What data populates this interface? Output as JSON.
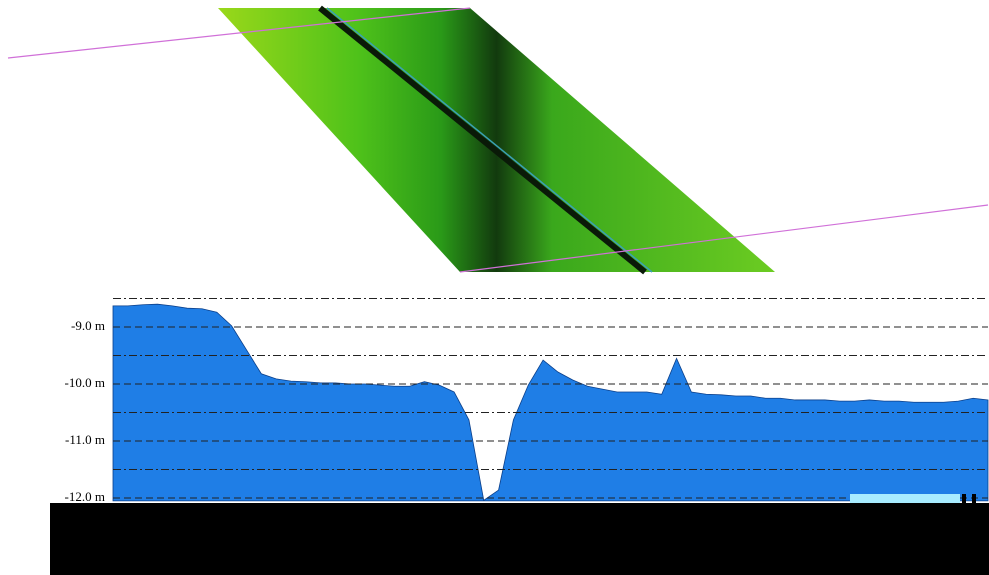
{
  "chart_data": {
    "type": "area",
    "values": [
      -8.63,
      -8.63,
      -8.61,
      -8.6,
      -8.63,
      -8.67,
      -8.68,
      -8.74,
      -8.98,
      -9.4,
      -9.82,
      -9.91,
      -9.95,
      -9.96,
      -9.98,
      -9.98,
      -10.0,
      -10.0,
      -10.02,
      -10.04,
      -10.04,
      -9.96,
      -10.02,
      -10.14,
      -10.63,
      -12.04,
      -11.86,
      -10.63,
      -10.02,
      -9.58,
      -9.79,
      -9.93,
      -10.04,
      -10.09,
      -10.14,
      -10.14,
      -10.14,
      -10.18,
      -9.55,
      -10.14,
      -10.18,
      -10.19,
      -10.21,
      -10.21,
      -10.25,
      -10.25,
      -10.28,
      -10.28,
      -10.28,
      -10.3,
      -10.3,
      -10.28,
      -10.3,
      -10.3,
      -10.32,
      -10.32,
      -10.32,
      -10.3,
      -10.25,
      -10.28
    ],
    "color": "#1f7ee6",
    "ylim": [
      -12.05,
      -8.45
    ],
    "yticks": [
      {
        "value": -9,
        "label": "-9.0 m"
      },
      {
        "value": -10,
        "label": "-10.0 m"
      },
      {
        "value": -11,
        "label": "-11.0 m"
      },
      {
        "value": -12,
        "label": "-12.0 m"
      }
    ],
    "minor_yticks": [
      -8.5,
      -9.5,
      -10.5,
      -11.5
    ],
    "grid": true
  }
}
